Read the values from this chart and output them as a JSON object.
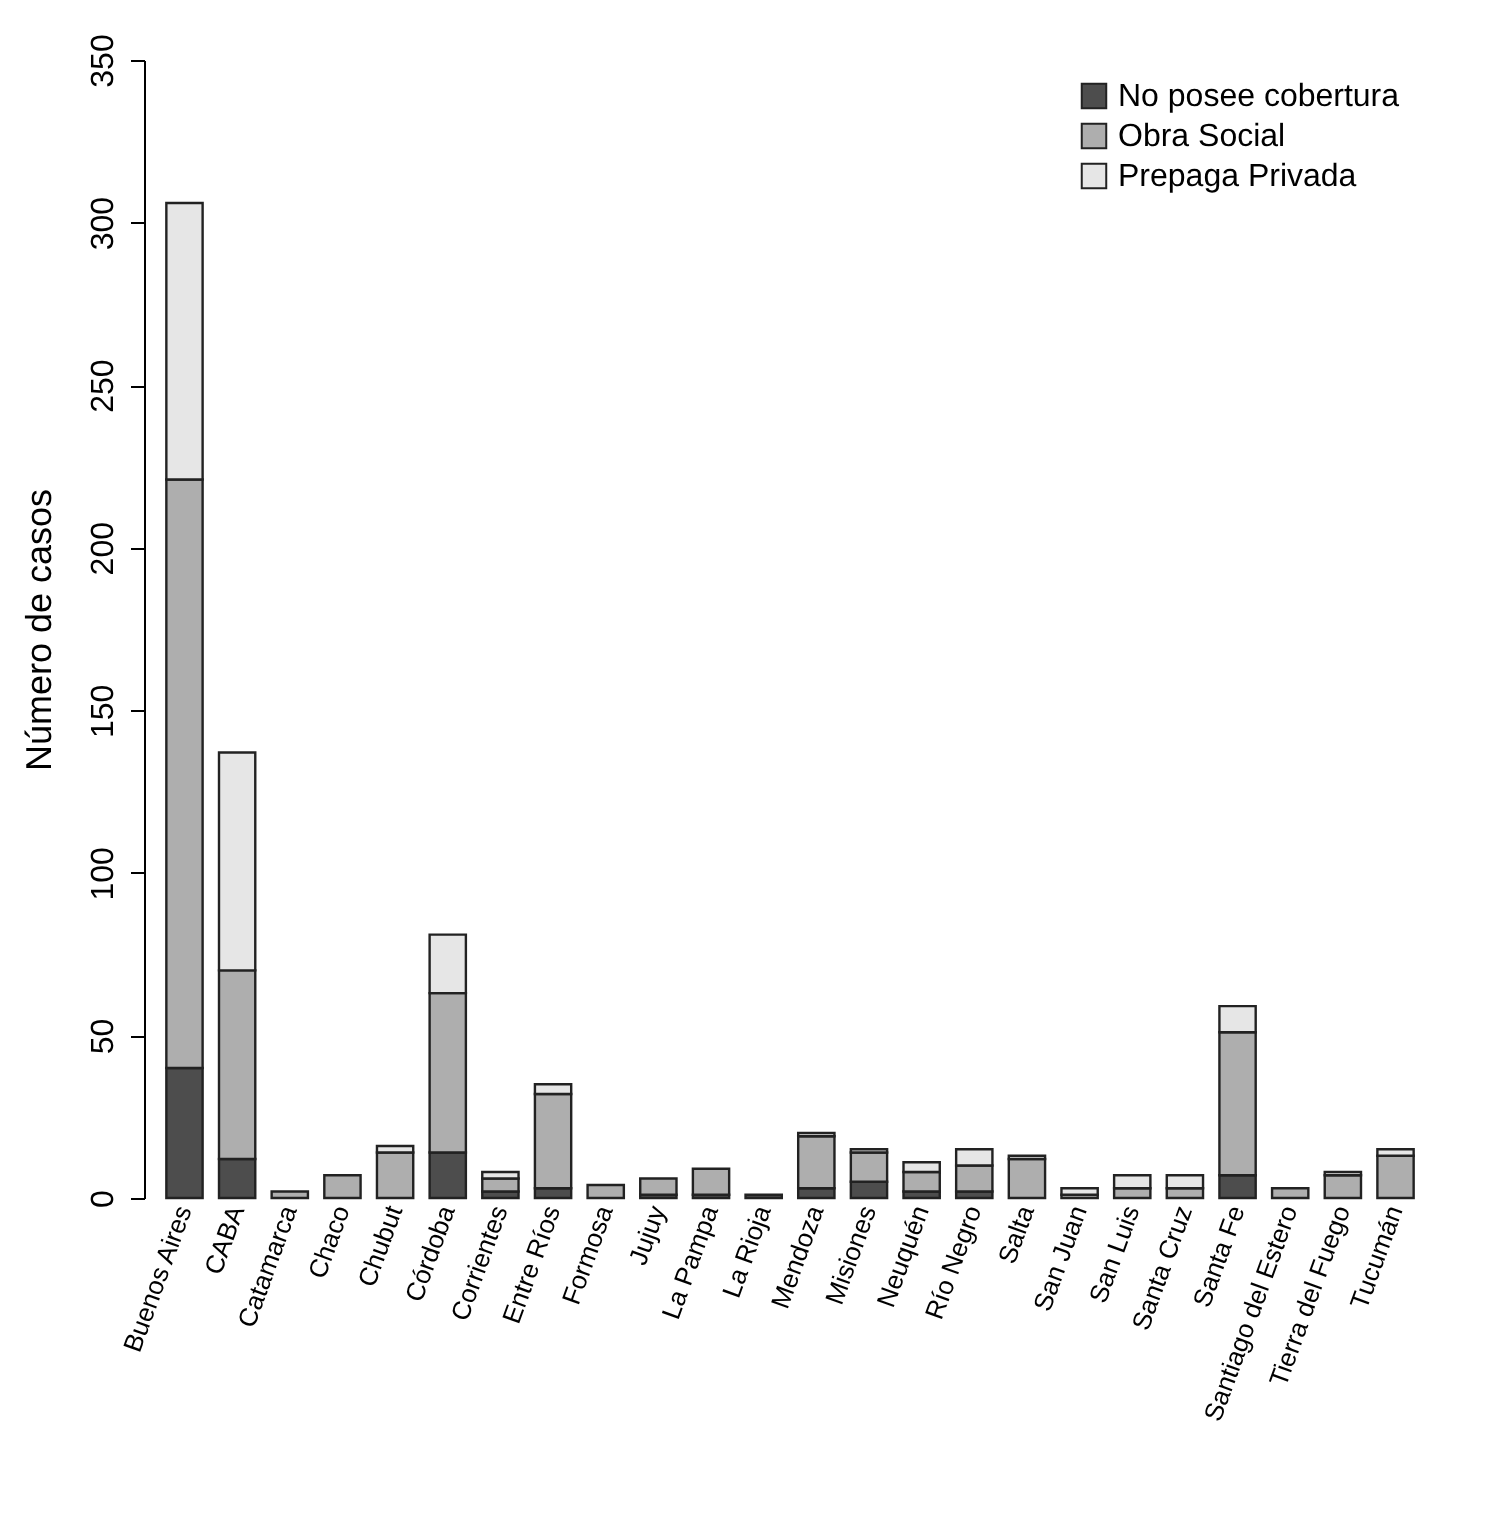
{
  "chart_data": {
    "type": "bar",
    "stacked": true,
    "ylabel": "Número de casos",
    "categories": [
      "Buenos Aires",
      "CABA",
      "Catamarca",
      "Chaco",
      "Chubut",
      "Córdoba",
      "Corrientes",
      "Entre Ríos",
      "Formosa",
      "Jujuy",
      "La Pampa",
      "La Rioja",
      "Mendoza",
      "Misiones",
      "Neuquén",
      "Río Negro",
      "Salta",
      "San Juan",
      "San Luis",
      "Santa Cruz",
      "Santa Fe",
      "Santiago del Estero",
      "Tierra del Fuego",
      "Tucumán"
    ],
    "series": [
      {
        "name": "No posee cobertura",
        "color": "#4d4d4d",
        "values": [
          40,
          12,
          0,
          0,
          0,
          14,
          2,
          3,
          0,
          1,
          1,
          1,
          3,
          5,
          2,
          2,
          0,
          0,
          0,
          0,
          7,
          0,
          0,
          0
        ]
      },
      {
        "name": "Obra Social",
        "color": "#aeaeae",
        "values": [
          181,
          58,
          2,
          7,
          14,
          49,
          4,
          29,
          4,
          5,
          8,
          0,
          16,
          9,
          6,
          8,
          12,
          1,
          3,
          3,
          44,
          3,
          7,
          13
        ]
      },
      {
        "name": "Prepaga Privada",
        "color": "#e6e6e6",
        "values": [
          85,
          67,
          0,
          0,
          2,
          18,
          2,
          3,
          0,
          0,
          0,
          0,
          1,
          1,
          3,
          5,
          1,
          2,
          4,
          4,
          8,
          0,
          1,
          2
        ]
      }
    ],
    "ylim": [
      0,
      350
    ],
    "yticks": [
      0,
      50,
      100,
      150,
      200,
      250,
      300,
      350
    ],
    "grid": false,
    "legend": "top right"
  }
}
